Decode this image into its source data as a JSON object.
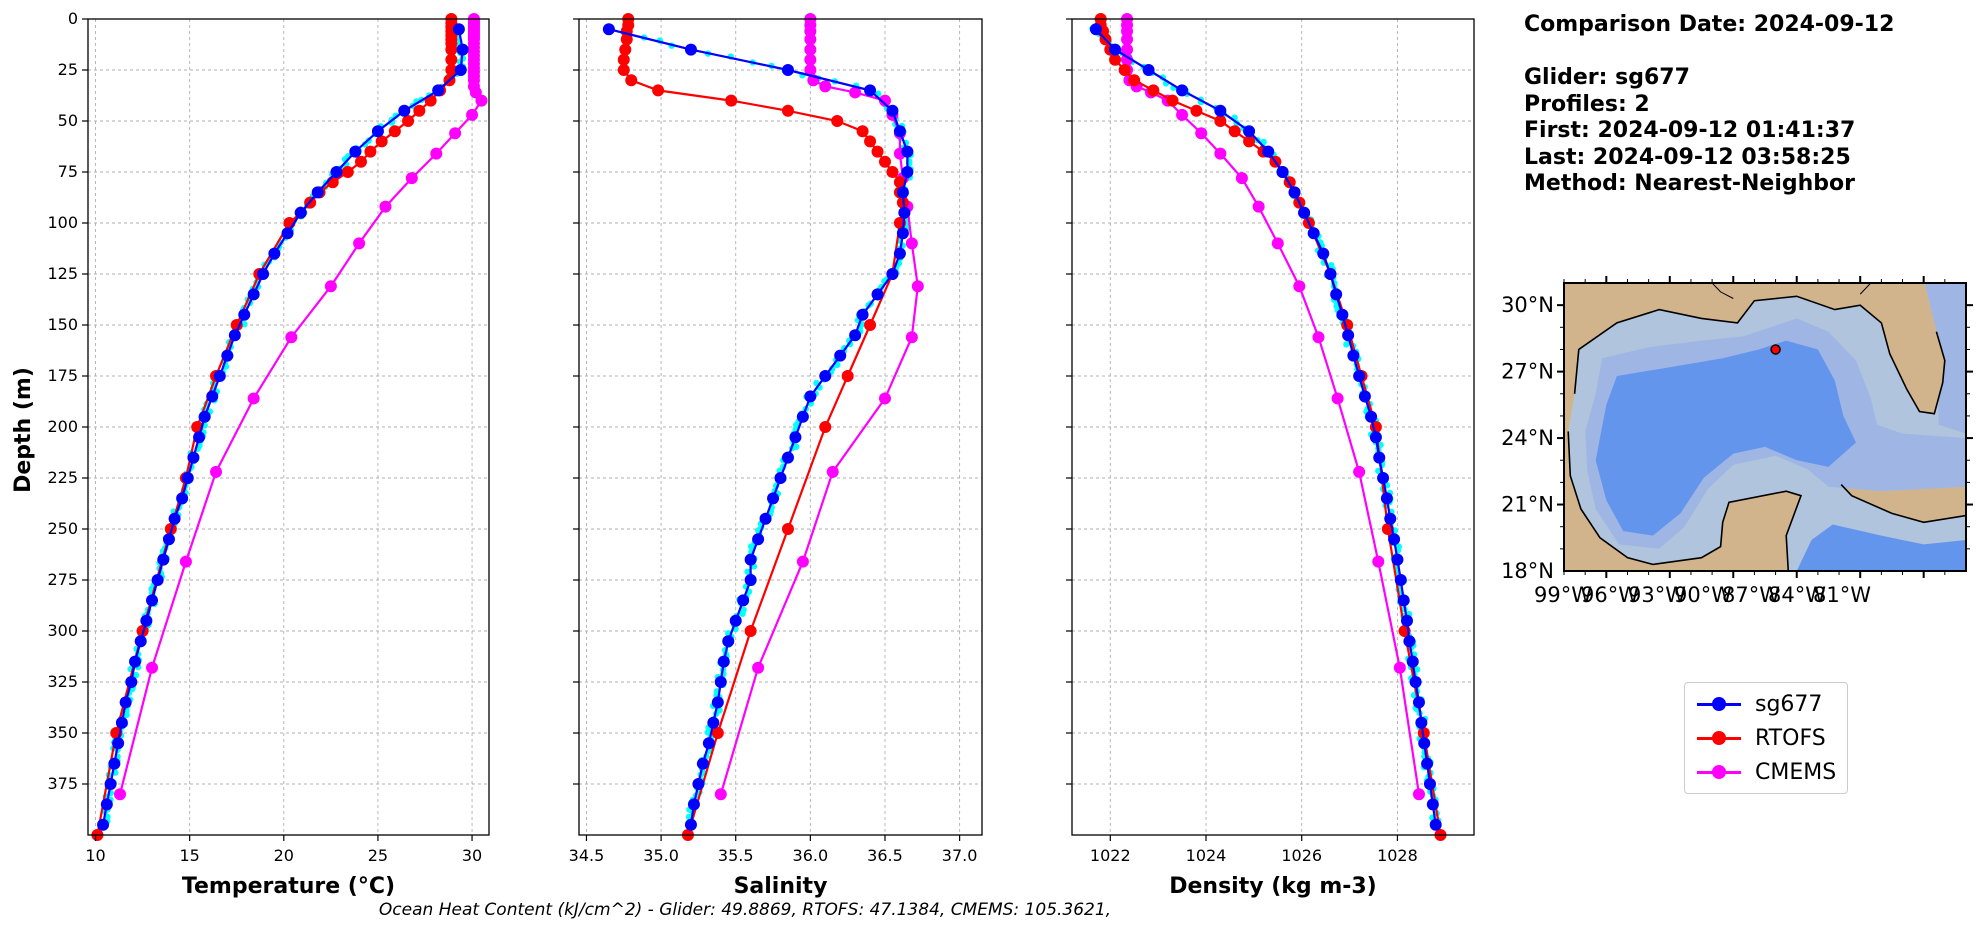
{
  "info": {
    "comparison_date": "Comparison Date: 2024-09-12",
    "glider": "Glider: sg677",
    "profiles": "Profiles: 2",
    "first": "First: 2024-09-12 01:41:37",
    "last": "Last: 2024-09-12 03:58:25",
    "method": "Method: Nearest-Neighbor"
  },
  "footer": "Ocean Heat Content (kJ/cm^2) - Glider: 49.8869,  RTOFS: 47.1384,  CMEMS: 105.3621,",
  "legend": [
    {
      "name": "sg677",
      "color": "#0000ff"
    },
    {
      "name": "RTOFS",
      "color": "#ff0000"
    },
    {
      "name": "CMEMS",
      "color": "#ff00ff"
    }
  ],
  "colors": {
    "glider_raw": "#00ffff",
    "grid": "#b0b0b0",
    "land": "#d2b48c",
    "deep": "#6495ed",
    "shelf": "#b0c4de",
    "mid": "#9fb6e4"
  },
  "chart_data": [
    {
      "type": "line",
      "xlabel": "Temperature (°C)",
      "ylabel": "Depth (m)",
      "xlim": [
        9.6,
        30.9
      ],
      "ylim": [
        400,
        0
      ],
      "xticks": [
        10,
        15,
        20,
        25,
        30
      ],
      "xtick_labels": [
        "10",
        "15",
        "20",
        "25",
        "30"
      ],
      "yticks": [
        0,
        25,
        50,
        75,
        100,
        125,
        150,
        175,
        200,
        225,
        250,
        275,
        300,
        325,
        350,
        375
      ],
      "grid": true,
      "series": [
        {
          "name": "sg677",
          "depth": [
            5,
            15,
            25,
            35,
            45,
            55,
            65,
            75,
            85,
            95,
            105,
            115,
            125,
            135,
            145,
            155,
            165,
            175,
            185,
            195,
            205,
            215,
            225,
            235,
            245,
            255,
            265,
            275,
            285,
            295,
            305,
            315,
            325,
            335,
            345,
            355,
            365,
            375,
            385,
            395
          ],
          "values": [
            29.3,
            29.5,
            29.4,
            28.2,
            26.4,
            25.0,
            23.8,
            22.8,
            21.8,
            20.9,
            20.2,
            19.5,
            18.9,
            18.4,
            17.9,
            17.4,
            17.0,
            16.6,
            16.2,
            15.8,
            15.5,
            15.2,
            14.9,
            14.6,
            14.2,
            13.9,
            13.6,
            13.3,
            13.0,
            12.7,
            12.4,
            12.1,
            11.9,
            11.6,
            11.4,
            11.2,
            11.0,
            10.8,
            10.6,
            10.4
          ]
        },
        {
          "name": "RTOFS",
          "depth": [
            0,
            2,
            4,
            6,
            8,
            10,
            12,
            15,
            20,
            25,
            30,
            35,
            40,
            45,
            50,
            55,
            60,
            65,
            70,
            75,
            80,
            85,
            90,
            95,
            100,
            125,
            150,
            175,
            200,
            225,
            250,
            300,
            350,
            400
          ],
          "values": [
            28.9,
            28.9,
            28.9,
            28.9,
            28.9,
            28.9,
            28.9,
            28.9,
            28.9,
            28.9,
            28.8,
            28.3,
            27.8,
            27.2,
            26.6,
            25.9,
            25.2,
            24.6,
            24.1,
            23.4,
            22.6,
            21.9,
            21.4,
            20.9,
            20.3,
            18.7,
            17.5,
            16.4,
            15.4,
            14.8,
            14.0,
            12.5,
            11.1,
            10.1
          ]
        },
        {
          "name": "CMEMS",
          "depth": [
            0,
            1,
            2,
            3,
            4,
            5,
            6,
            7,
            8,
            9,
            10,
            12,
            14,
            16,
            18,
            20,
            22,
            24,
            26,
            28,
            30,
            33,
            36,
            40,
            47,
            56,
            66,
            78,
            92,
            110,
            131,
            156,
            186,
            222,
            266,
            318,
            380
          ],
          "values": [
            30.1,
            30.1,
            30.1,
            30.1,
            30.1,
            30.1,
            30.1,
            30.1,
            30.1,
            30.1,
            30.1,
            30.1,
            30.1,
            30.1,
            30.1,
            30.1,
            30.1,
            30.1,
            30.1,
            30.1,
            30.1,
            30.1,
            30.2,
            30.5,
            30.0,
            29.1,
            28.1,
            26.8,
            25.4,
            24.0,
            22.5,
            20.4,
            18.4,
            16.4,
            14.8,
            13.0,
            11.3
          ]
        }
      ]
    },
    {
      "type": "line",
      "xlabel": "Salinity",
      "xlim": [
        34.45,
        37.15
      ],
      "ylim": [
        400,
        0
      ],
      "xticks": [
        34.5,
        35.0,
        35.5,
        36.0,
        36.5,
        37.0
      ],
      "xtick_labels": [
        "34.5",
        "35.0",
        "35.5",
        "36.0",
        "36.5",
        "37.0"
      ],
      "grid": true,
      "series": [
        {
          "name": "sg677",
          "depth": [
            5,
            15,
            25,
            35,
            45,
            55,
            65,
            75,
            85,
            95,
            105,
            115,
            125,
            135,
            145,
            155,
            165,
            175,
            185,
            195,
            205,
            215,
            225,
            235,
            245,
            255,
            265,
            275,
            285,
            295,
            305,
            315,
            325,
            335,
            345,
            355,
            365,
            375,
            385,
            395
          ],
          "values": [
            34.65,
            35.2,
            35.85,
            36.4,
            36.55,
            36.6,
            36.65,
            36.65,
            36.62,
            36.63,
            36.62,
            36.6,
            36.55,
            36.45,
            36.35,
            36.3,
            36.2,
            36.1,
            36.0,
            35.95,
            35.9,
            35.85,
            35.8,
            35.75,
            35.7,
            35.65,
            35.6,
            35.6,
            35.55,
            35.5,
            35.45,
            35.42,
            35.4,
            35.38,
            35.35,
            35.32,
            35.28,
            35.25,
            35.22,
            35.2
          ]
        },
        {
          "name": "RTOFS",
          "depth": [
            0,
            3,
            6,
            10,
            15,
            20,
            25,
            30,
            35,
            40,
            45,
            50,
            55,
            60,
            65,
            70,
            75,
            80,
            85,
            90,
            95,
            100,
            125,
            150,
            175,
            200,
            250,
            300,
            350,
            400
          ],
          "values": [
            34.78,
            34.78,
            34.77,
            34.77,
            34.76,
            34.75,
            34.75,
            34.8,
            34.98,
            35.47,
            35.85,
            36.18,
            36.35,
            36.4,
            36.45,
            36.5,
            36.55,
            36.6,
            36.6,
            36.62,
            36.63,
            36.6,
            36.55,
            36.4,
            36.25,
            36.1,
            35.85,
            35.6,
            35.38,
            35.18
          ]
        },
        {
          "name": "CMEMS",
          "depth": [
            0,
            3,
            6,
            10,
            15,
            20,
            25,
            30,
            33,
            36,
            40,
            47,
            56,
            66,
            78,
            92,
            110,
            131,
            156,
            186,
            222,
            266,
            318,
            380
          ],
          "values": [
            36.0,
            36.0,
            36.0,
            36.0,
            36.0,
            36.0,
            36.0,
            36.02,
            36.1,
            36.3,
            36.5,
            36.55,
            36.6,
            36.6,
            36.62,
            36.65,
            36.68,
            36.72,
            36.68,
            36.5,
            36.15,
            35.95,
            35.65,
            35.4
          ]
        }
      ]
    },
    {
      "type": "line",
      "xlabel": "Density (kg m-3)",
      "xlim": [
        1021.2,
        1029.6
      ],
      "ylim": [
        400,
        0
      ],
      "xticks": [
        1022,
        1024,
        1026,
        1028
      ],
      "xtick_labels": [
        "1022",
        "1024",
        "1026",
        "1028"
      ],
      "grid": true,
      "series": [
        {
          "name": "sg677",
          "depth": [
            5,
            15,
            25,
            35,
            45,
            55,
            65,
            75,
            85,
            95,
            105,
            115,
            125,
            135,
            145,
            155,
            165,
            175,
            185,
            195,
            205,
            215,
            225,
            235,
            245,
            255,
            265,
            275,
            285,
            295,
            305,
            315,
            325,
            335,
            345,
            355,
            365,
            375,
            385,
            395
          ],
          "values": [
            1021.7,
            1022.1,
            1022.8,
            1023.5,
            1024.3,
            1024.9,
            1025.3,
            1025.6,
            1025.85,
            1026.05,
            1026.25,
            1026.45,
            1026.6,
            1026.72,
            1026.85,
            1026.97,
            1027.08,
            1027.2,
            1027.32,
            1027.45,
            1027.55,
            1027.62,
            1027.7,
            1027.78,
            1027.85,
            1027.93,
            1028.0,
            1028.07,
            1028.13,
            1028.2,
            1028.25,
            1028.32,
            1028.38,
            1028.45,
            1028.5,
            1028.56,
            1028.62,
            1028.68,
            1028.74,
            1028.8
          ]
        },
        {
          "name": "RTOFS",
          "depth": [
            0,
            3,
            6,
            10,
            15,
            20,
            25,
            30,
            35,
            40,
            45,
            50,
            55,
            60,
            65,
            70,
            75,
            80,
            85,
            90,
            95,
            100,
            125,
            150,
            175,
            200,
            250,
            300,
            350,
            400
          ],
          "values": [
            1021.8,
            1021.8,
            1021.85,
            1021.9,
            1022.0,
            1022.1,
            1022.3,
            1022.5,
            1022.9,
            1023.3,
            1023.8,
            1024.3,
            1024.6,
            1024.9,
            1025.2,
            1025.45,
            1025.6,
            1025.75,
            1025.85,
            1025.95,
            1026.05,
            1026.15,
            1026.6,
            1026.95,
            1027.25,
            1027.55,
            1027.8,
            1028.15,
            1028.55,
            1028.9
          ]
        },
        {
          "name": "CMEMS",
          "depth": [
            0,
            3,
            6,
            10,
            15,
            20,
            25,
            30,
            33,
            36,
            40,
            47,
            56,
            66,
            78,
            92,
            110,
            131,
            156,
            186,
            222,
            266,
            318,
            380
          ],
          "values": [
            1022.35,
            1022.35,
            1022.35,
            1022.35,
            1022.35,
            1022.35,
            1022.35,
            1022.4,
            1022.55,
            1022.85,
            1023.2,
            1023.5,
            1023.9,
            1024.3,
            1024.75,
            1025.1,
            1025.5,
            1025.95,
            1026.35,
            1026.75,
            1027.2,
            1027.6,
            1028.05,
            1028.45
          ]
        }
      ]
    },
    {
      "type": "map",
      "xlim": [
        -98,
        -79
      ],
      "ylim": [
        18,
        31
      ],
      "xtick_labels": [
        "99°W",
        "96°W",
        "93°W",
        "90°W",
        "87°W",
        "84°W",
        "81°W"
      ],
      "ytick_labels": [
        "30°N",
        "27°N",
        "24°N",
        "21°N",
        "18°N"
      ],
      "marker": {
        "lon": -88.0,
        "lat": 28.0
      }
    }
  ]
}
